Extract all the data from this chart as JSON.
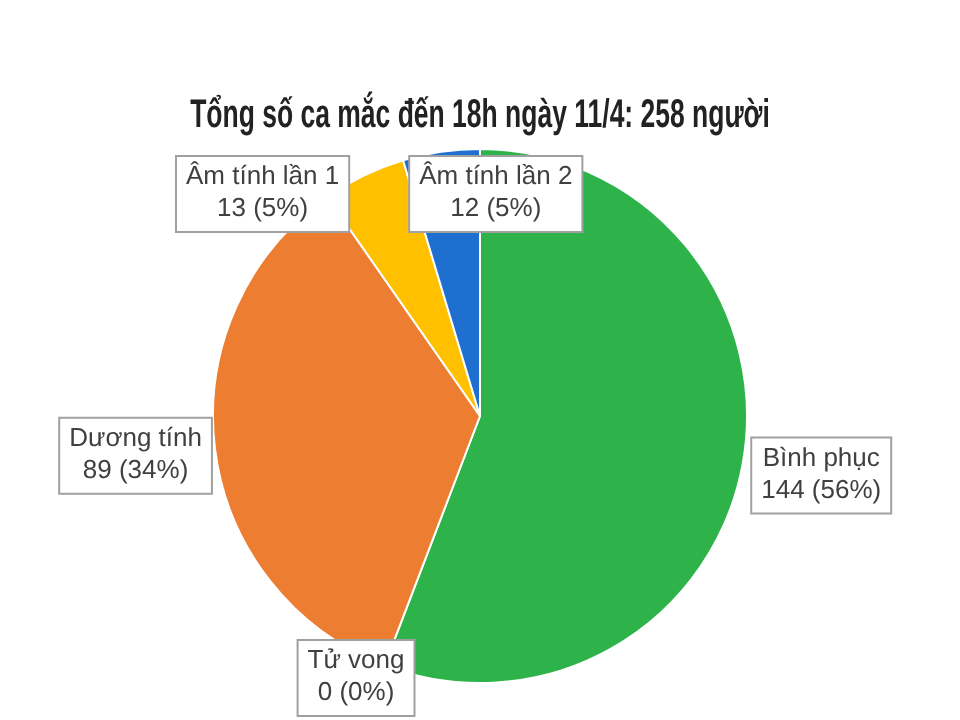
{
  "chart_data": {
    "type": "pie",
    "title": "Tổng số ca mắc đến 18h ngày 11/4: 258 người",
    "categories": [
      "Bình phục",
      "Tử vong",
      "Dương tính",
      "Âm tính lần 1",
      "Âm tính lần 2"
    ],
    "values": [
      144,
      0,
      89,
      13,
      12
    ],
    "colors": [
      "#2db34a",
      "#a5a5a5",
      "#ed7d31",
      "#ffc000",
      "#1f6fd1"
    ],
    "value_labels": [
      "144 (56%)",
      "0 (0%)",
      "89 (34%)",
      "13 (5%)",
      "12 (5%)"
    ],
    "legend": false
  }
}
